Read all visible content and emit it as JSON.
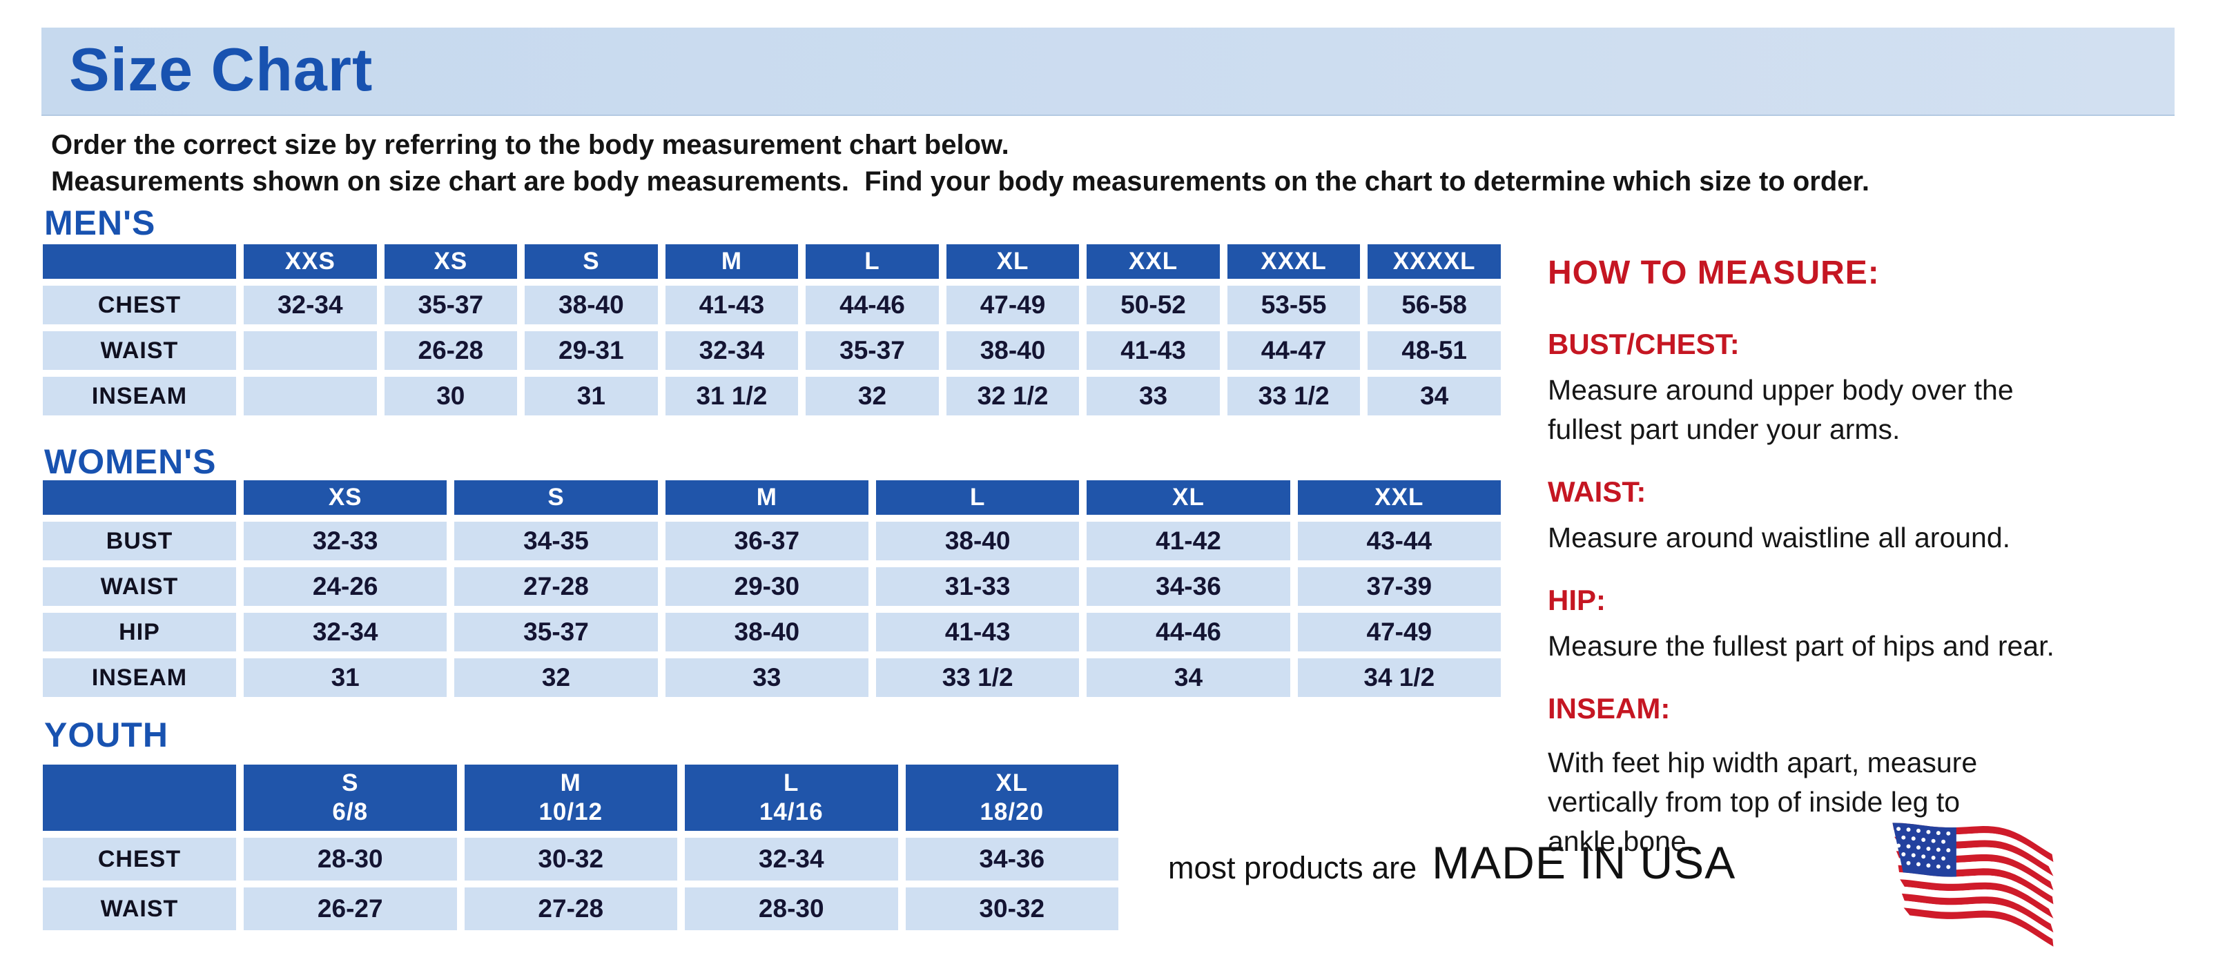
{
  "page": {
    "title": "Size Chart"
  },
  "intro": {
    "line1": "Order the correct size by referring to the body measurement chart below.",
    "line2": "Measurements shown on size chart are body measurements.  Find your body measurements on the chart to determine which size to order."
  },
  "tables": {
    "mens": {
      "heading": "MEN'S",
      "columns": [
        "XXS",
        "XS",
        "S",
        "M",
        "L",
        "XL",
        "XXL",
        "XXXL",
        "XXXXL"
      ],
      "rows": [
        {
          "label": "CHEST",
          "values": [
            "32-34",
            "35-37",
            "38-40",
            "41-43",
            "44-46",
            "47-49",
            "50-52",
            "53-55",
            "56-58"
          ]
        },
        {
          "label": "WAIST",
          "values": [
            "",
            "26-28",
            "29-31",
            "32-34",
            "35-37",
            "38-40",
            "41-43",
            "44-47",
            "48-51"
          ]
        },
        {
          "label": "INSEAM",
          "values": [
            "",
            "30",
            "31",
            "31 1/2",
            "32",
            "32 1/2",
            "33",
            "33 1/2",
            "34"
          ]
        }
      ]
    },
    "womens": {
      "heading": "WOMEN'S",
      "columns": [
        "XS",
        "S",
        "M",
        "L",
        "XL",
        "XXL"
      ],
      "rows": [
        {
          "label": "BUST",
          "values": [
            "32-33",
            "34-35",
            "36-37",
            "38-40",
            "41-42",
            "43-44"
          ]
        },
        {
          "label": "WAIST",
          "values": [
            "24-26",
            "27-28",
            "29-30",
            "31-33",
            "34-36",
            "37-39"
          ]
        },
        {
          "label": "HIP",
          "values": [
            "32-34",
            "35-37",
            "38-40",
            "41-43",
            "44-46",
            "47-49"
          ]
        },
        {
          "label": "INSEAM",
          "values": [
            "31",
            "32",
            "33",
            "33 1/2",
            "34",
            "34 1/2"
          ]
        }
      ]
    },
    "youth": {
      "heading": "YOUTH",
      "columns": [
        "S\n6/8",
        "M\n10/12",
        "L\n14/16",
        "XL\n18/20"
      ],
      "rows": [
        {
          "label": "CHEST",
          "values": [
            "28-30",
            "30-32",
            "32-34",
            "34-36"
          ]
        },
        {
          "label": "WAIST",
          "values": [
            "26-27",
            "27-28",
            "28-30",
            "30-32"
          ]
        }
      ]
    }
  },
  "measure": {
    "heading": "HOW TO MEASURE:",
    "items": [
      {
        "label": "BUST/CHEST:",
        "text": "Measure around upper body over the\nfullest part under your arms."
      },
      {
        "label": "WAIST:",
        "text": "Measure around waistline all around."
      },
      {
        "label": "HIP:",
        "text": "Measure the fullest part of hips and rear."
      },
      {
        "label": "INSEAM:",
        "text": "With feet hip width apart, measure\nvertically from top of inside leg to\nankle bone."
      }
    ]
  },
  "footer": {
    "prefix": "most products are",
    "emphasis": "MADE IN USA",
    "flag_icon": "us-flag-icon"
  },
  "colors": {
    "banner_bg": "#c6d9ee",
    "heading_blue": "#1852b0",
    "table_header_bg": "#2055aa",
    "table_cell_bg": "#cfdff2",
    "accent_red": "#c51622",
    "text_dark": "#141414",
    "value_navy": "#141432",
    "flag_red": "#cf1b2a",
    "flag_blue": "#23419e"
  }
}
